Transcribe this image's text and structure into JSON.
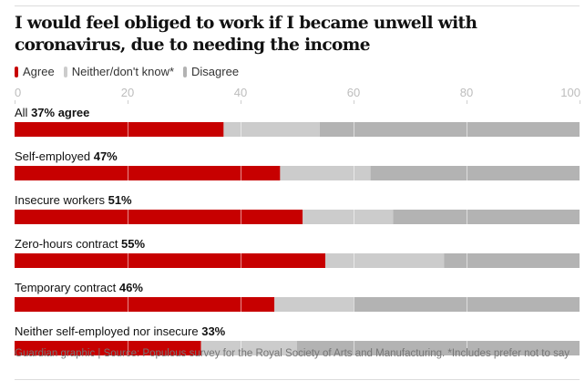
{
  "title": "I would feel obliged to work if I became unwell with coronavirus, due to needing the income",
  "legend": [
    {
      "label": "Agree",
      "color": "#c70000"
    },
    {
      "label": "Neither/don't know*",
      "color": "#cccccc"
    },
    {
      "label": "Disagree",
      "color": "#b3b3b3"
    }
  ],
  "footer": "Guardian graphic | Source: Populous survey for the Royal Society of Arts and Manufacturing. *Includes prefer not to say",
  "chart_data": {
    "type": "bar",
    "orientation": "horizontal",
    "stacked": true,
    "title": "I would feel obliged to work if I became unwell with coronavirus, due to needing the income",
    "xlabel": "",
    "ylabel": "",
    "xlim": [
      0,
      100
    ],
    "xticks": [
      0,
      20,
      40,
      60,
      80,
      100
    ],
    "grid": true,
    "legend_position": "top-left",
    "categories": [
      {
        "name": "All",
        "pct_label": "37% agree"
      },
      {
        "name": "Self-employed",
        "pct_label": "47%"
      },
      {
        "name": "Insecure workers",
        "pct_label": "51%"
      },
      {
        "name": "Zero-hours contract",
        "pct_label": "55%"
      },
      {
        "name": "Temporary contract",
        "pct_label": "46%"
      },
      {
        "name": "Neither self-employed nor insecure",
        "pct_label": "33%"
      }
    ],
    "series": [
      {
        "name": "Agree",
        "color": "#c70000",
        "values": [
          37,
          47,
          51,
          55,
          46,
          33
        ]
      },
      {
        "name": "Neither/don't know*",
        "color": "#cccccc",
        "values": [
          17,
          16,
          16,
          21,
          14,
          17
        ]
      },
      {
        "name": "Disagree",
        "color": "#b3b3b3",
        "values": [
          46,
          37,
          33,
          24,
          40,
          50
        ]
      }
    ]
  }
}
